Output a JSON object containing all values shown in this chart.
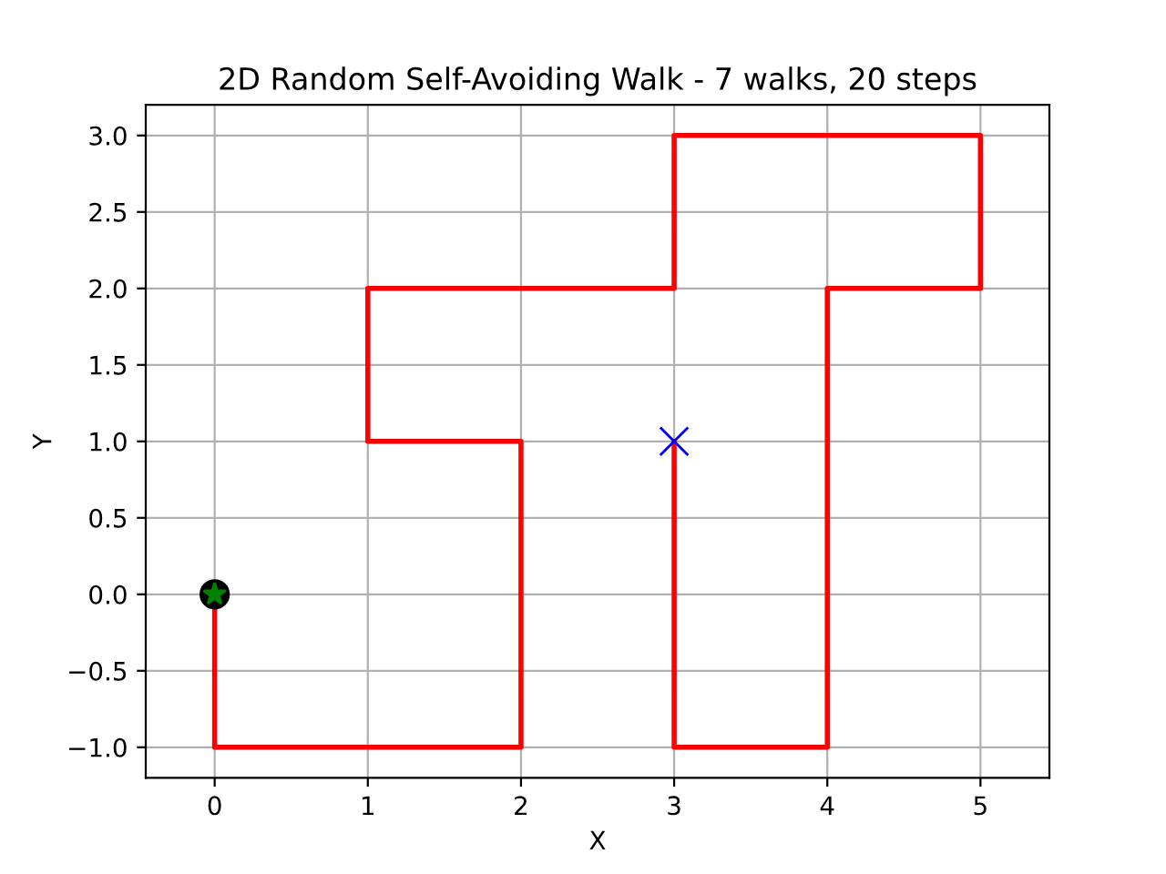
{
  "chart_data": {
    "type": "line",
    "title": "2D Random Self-Avoiding Walk - 7 walks, 20 steps",
    "xlabel": "X",
    "ylabel": "Y",
    "grid": true,
    "xlim": [
      -0.45,
      5.45
    ],
    "ylim": [
      -1.2,
      3.2
    ],
    "xticks": [
      0,
      1,
      2,
      3,
      4,
      5
    ],
    "yticks": [
      {
        "value": -1,
        "label": "−1.0"
      },
      {
        "value": -0.5,
        "label": "−0.5"
      },
      {
        "value": 0,
        "label": "0.0"
      },
      {
        "value": 0.5,
        "label": "0.5"
      },
      {
        "value": 1,
        "label": "1.0"
      },
      {
        "value": 1.5,
        "label": "1.5"
      },
      {
        "value": 2,
        "label": "2.0"
      },
      {
        "value": 2.5,
        "label": "2.5"
      },
      {
        "value": 3,
        "label": "3.0"
      }
    ],
    "series": [
      {
        "color": "#ff0000",
        "marker": "none",
        "x": [
          0,
          0,
          1,
          2,
          2,
          2,
          1,
          1,
          2,
          3,
          3,
          4,
          5,
          5,
          4,
          4,
          4,
          4,
          3,
          3,
          3
        ],
        "values": [
          0,
          -1,
          -1,
          -1,
          0,
          1,
          1,
          2,
          2,
          2,
          3,
          3,
          3,
          2,
          2,
          1,
          0,
          -1,
          -1,
          0,
          1
        ]
      },
      {
        "type": "scatter",
        "color": "#000000",
        "marker": "circle",
        "x": [
          0
        ],
        "values": [
          0
        ]
      },
      {
        "type": "scatter",
        "color": "#008000",
        "marker": "star",
        "x": [
          0
        ],
        "values": [
          0
        ]
      },
      {
        "type": "scatter",
        "color": "#0000ff",
        "marker": "cross",
        "x": [
          3
        ],
        "values": [
          1
        ]
      }
    ]
  }
}
